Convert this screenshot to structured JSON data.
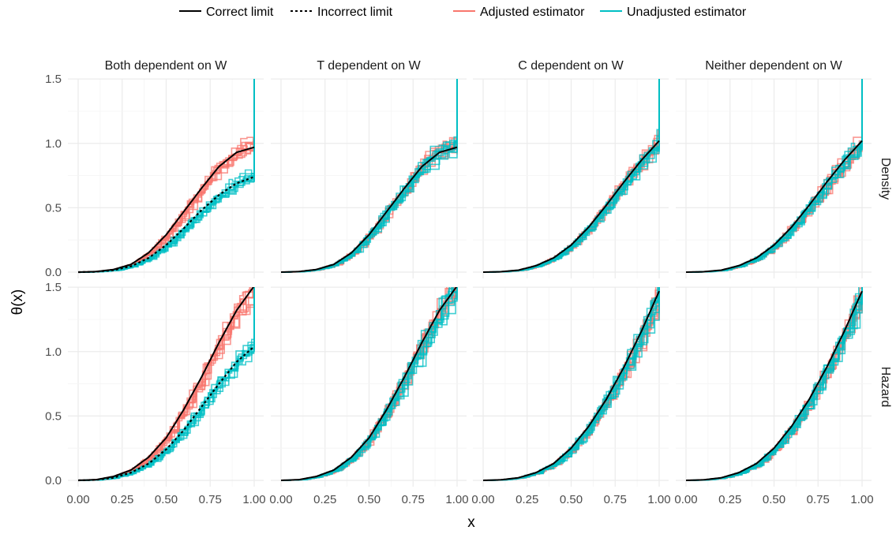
{
  "legend": {
    "items": [
      {
        "label": "Correct limit",
        "color": "#000000",
        "dash": "solid"
      },
      {
        "label": "Incorrect limit",
        "color": "#000000",
        "dash": "dotted"
      },
      {
        "label": "Adjusted estimator",
        "color": "#F8766D",
        "dash": "solid"
      },
      {
        "label": "Unadjusted estimator",
        "color": "#00BFC4",
        "dash": "solid"
      }
    ]
  },
  "chart_data": {
    "type": "line",
    "xlabel": "x",
    "ylabel": "θ(x)",
    "xlim": [
      0,
      1
    ],
    "ylim": [
      0,
      1.55
    ],
    "xticks": [
      "0.00",
      "0.25",
      "0.50",
      "0.75",
      "1.00"
    ],
    "yticks": [
      "0.0",
      "0.5",
      "1.0",
      "1.5"
    ],
    "grid": true,
    "legend_position": "top",
    "columns": [
      "Both dependent on W",
      "T dependent on W",
      "C dependent on W",
      "Neither dependent on W"
    ],
    "rows": [
      "Density",
      "Hazard"
    ],
    "x": [
      0,
      0.1,
      0.2,
      0.3,
      0.4,
      0.5,
      0.6,
      0.7,
      0.8,
      0.9,
      1.0
    ],
    "panels": [
      {
        "row": "Density",
        "column": "Both dependent on W",
        "correct_limit": [
          0,
          0.004,
          0.02,
          0.06,
          0.15,
          0.29,
          0.47,
          0.65,
          0.82,
          0.93,
          0.97
        ],
        "incorrect_limit": [
          0,
          0.003,
          0.015,
          0.045,
          0.11,
          0.21,
          0.34,
          0.48,
          0.6,
          0.69,
          0.74
        ],
        "adjusted_trend": [
          0,
          0.004,
          0.02,
          0.06,
          0.15,
          0.29,
          0.47,
          0.65,
          0.82,
          0.93,
          0.97
        ],
        "unadjusted_trend": [
          0,
          0.003,
          0.015,
          0.045,
          0.11,
          0.21,
          0.34,
          0.48,
          0.6,
          0.69,
          0.74
        ]
      },
      {
        "row": "Density",
        "column": "T dependent on W",
        "correct_limit": [
          0,
          0.004,
          0.02,
          0.06,
          0.15,
          0.29,
          0.47,
          0.65,
          0.82,
          0.93,
          0.97
        ],
        "incorrect_limit": null,
        "adjusted_trend": [
          0,
          0.004,
          0.02,
          0.06,
          0.15,
          0.29,
          0.47,
          0.65,
          0.82,
          0.93,
          0.97
        ],
        "unadjusted_trend": [
          0,
          0.004,
          0.02,
          0.06,
          0.15,
          0.29,
          0.47,
          0.65,
          0.82,
          0.93,
          0.97
        ]
      },
      {
        "row": "Density",
        "column": "C dependent on W",
        "correct_limit": [
          0,
          0.003,
          0.015,
          0.05,
          0.11,
          0.21,
          0.35,
          0.52,
          0.7,
          0.87,
          1.02
        ],
        "incorrect_limit": null,
        "adjusted_trend": [
          0,
          0.003,
          0.015,
          0.05,
          0.11,
          0.21,
          0.35,
          0.52,
          0.7,
          0.87,
          1.02
        ],
        "unadjusted_trend": [
          0,
          0.003,
          0.015,
          0.05,
          0.11,
          0.21,
          0.35,
          0.52,
          0.7,
          0.87,
          1.02
        ]
      },
      {
        "row": "Density",
        "column": "Neither dependent on W",
        "correct_limit": [
          0,
          0.003,
          0.015,
          0.05,
          0.11,
          0.21,
          0.35,
          0.52,
          0.7,
          0.87,
          1.02
        ],
        "incorrect_limit": null,
        "adjusted_trend": [
          0,
          0.003,
          0.015,
          0.05,
          0.11,
          0.21,
          0.35,
          0.52,
          0.7,
          0.87,
          1.02
        ],
        "unadjusted_trend": [
          0,
          0.003,
          0.015,
          0.05,
          0.11,
          0.21,
          0.35,
          0.52,
          0.7,
          0.87,
          1.02
        ]
      },
      {
        "row": "Hazard",
        "column": "Both dependent on W",
        "correct_limit": [
          0,
          0.005,
          0.03,
          0.08,
          0.18,
          0.33,
          0.55,
          0.8,
          1.07,
          1.32,
          1.51
        ],
        "incorrect_limit": [
          0,
          0.004,
          0.02,
          0.06,
          0.13,
          0.24,
          0.39,
          0.57,
          0.75,
          0.92,
          1.04
        ],
        "adjusted_trend": [
          0,
          0.005,
          0.03,
          0.08,
          0.18,
          0.33,
          0.55,
          0.8,
          1.07,
          1.32,
          1.51
        ],
        "unadjusted_trend": [
          0,
          0.004,
          0.02,
          0.06,
          0.13,
          0.24,
          0.39,
          0.57,
          0.75,
          0.92,
          1.04
        ]
      },
      {
        "row": "Hazard",
        "column": "T dependent on W",
        "correct_limit": [
          0,
          0.005,
          0.03,
          0.08,
          0.18,
          0.33,
          0.55,
          0.8,
          1.07,
          1.32,
          1.51
        ],
        "incorrect_limit": null,
        "adjusted_trend": [
          0,
          0.005,
          0.03,
          0.08,
          0.18,
          0.33,
          0.55,
          0.8,
          1.07,
          1.32,
          1.51
        ],
        "unadjusted_trend": [
          0,
          0.005,
          0.03,
          0.08,
          0.18,
          0.33,
          0.55,
          0.8,
          1.07,
          1.32,
          1.51
        ]
      },
      {
        "row": "Hazard",
        "column": "C dependent on W",
        "correct_limit": [
          0,
          0.004,
          0.02,
          0.06,
          0.13,
          0.25,
          0.42,
          0.63,
          0.88,
          1.16,
          1.47
        ],
        "incorrect_limit": null,
        "adjusted_trend": [
          0,
          0.004,
          0.02,
          0.06,
          0.13,
          0.25,
          0.42,
          0.63,
          0.88,
          1.16,
          1.47
        ],
        "unadjusted_trend": [
          0,
          0.004,
          0.02,
          0.06,
          0.13,
          0.25,
          0.42,
          0.63,
          0.88,
          1.16,
          1.47
        ]
      },
      {
        "row": "Hazard",
        "column": "Neither dependent on W",
        "correct_limit": [
          0,
          0.004,
          0.02,
          0.06,
          0.13,
          0.25,
          0.42,
          0.63,
          0.88,
          1.16,
          1.47
        ],
        "incorrect_limit": null,
        "adjusted_trend": [
          0,
          0.004,
          0.02,
          0.06,
          0.13,
          0.25,
          0.42,
          0.63,
          0.88,
          1.16,
          1.47
        ],
        "unadjusted_trend": [
          0,
          0.004,
          0.02,
          0.06,
          0.13,
          0.25,
          0.42,
          0.63,
          0.88,
          1.16,
          1.47
        ]
      }
    ]
  }
}
